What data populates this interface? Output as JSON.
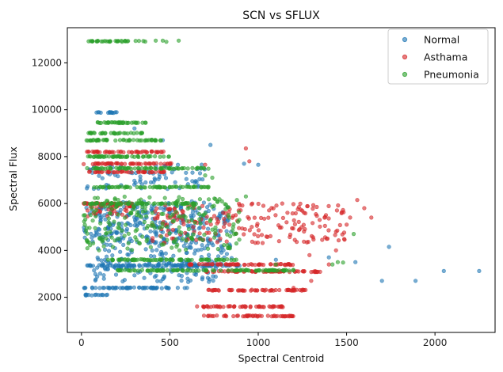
{
  "chart_data": {
    "type": "scatter",
    "title": "SCN vs SFLUX",
    "xlabel": "Spectral Centroid",
    "ylabel": "Spectral Flux",
    "xlim": [
      -80,
      2340
    ],
    "ylim": [
      500,
      13500
    ],
    "xticks": [
      0,
      500,
      1000,
      1500,
      2000
    ],
    "yticks": [
      2000,
      4000,
      6000,
      8000,
      10000,
      12000
    ],
    "grid": false,
    "legend_position": "top-right",
    "series": [
      {
        "name": "Normal",
        "color": "#1f77b4",
        "clusters": [
          {
            "x": [
              70,
              210
            ],
            "y": [
              9880,
              9880
            ]
          },
          {
            "x": [
              10,
              600
            ],
            "y": [
              2400,
              2400
            ]
          },
          {
            "x": [
              10,
              150
            ],
            "y": [
              2100,
              2100
            ]
          },
          {
            "x": [
              10,
              900
            ],
            "y": [
              3350,
              3350
            ]
          },
          {
            "x": [
              10,
              700
            ],
            "y": [
              4300,
              6100
            ]
          },
          {
            "x": [
              70,
              800
            ],
            "y": [
              2650,
              3700
            ]
          },
          {
            "x": [
              20,
              700
            ],
            "y": [
              6600,
              7700
            ]
          },
          {
            "x": [
              80,
              850
            ],
            "y": [
              3200,
              6000
            ]
          }
        ],
        "points": [
          [
            1740,
            4150
          ],
          [
            1700,
            2700
          ],
          [
            1890,
            2700
          ],
          [
            2050,
            3120
          ],
          [
            2250,
            3120
          ],
          [
            1550,
            3500
          ],
          [
            1000,
            7650
          ],
          [
            730,
            8500
          ],
          [
            460,
            8700
          ],
          [
            300,
            9200
          ],
          [
            920,
            7700
          ],
          [
            1100,
            3600
          ],
          [
            1400,
            3700
          ]
        ]
      },
      {
        "name": "Asthama",
        "color": "#d62728",
        "clusters": [
          {
            "x": [
              10,
              510
            ],
            "y": [
              7700,
              7700
            ]
          },
          {
            "x": [
              10,
              480
            ],
            "y": [
              8200,
              8200
            ]
          },
          {
            "x": [
              30,
              480
            ],
            "y": [
              7350,
              7350
            ]
          },
          {
            "x": [
              10,
              300
            ],
            "y": [
              6000,
              6000
            ]
          },
          {
            "x": [
              30,
              300
            ],
            "y": [
              5400,
              6000
            ]
          },
          {
            "x": [
              400,
              1500
            ],
            "y": [
              4300,
              6000
            ]
          },
          {
            "x": [
              650,
              1150
            ],
            "y": [
              1600,
              1600
            ]
          },
          {
            "x": [
              680,
              1200
            ],
            "y": [
              1200,
              1200
            ]
          },
          {
            "x": [
              700,
              1280
            ],
            "y": [
              2300,
              2300
            ]
          },
          {
            "x": [
              600,
              1200
            ],
            "y": [
              3400,
              3400
            ]
          },
          {
            "x": [
              700,
              1350
            ],
            "y": [
              3100,
              3100
            ]
          }
        ],
        "points": [
          [
            1600,
            5800
          ],
          [
            1560,
            6150
          ],
          [
            1640,
            5400
          ],
          [
            1500,
            5100
          ],
          [
            1520,
            5400
          ],
          [
            1440,
            4800
          ],
          [
            1440,
            4000
          ],
          [
            1400,
            3400
          ],
          [
            1290,
            3800
          ],
          [
            930,
            8350
          ],
          [
            950,
            7800
          ],
          [
            700,
            7650
          ],
          [
            1200,
            2400
          ],
          [
            1300,
            2700
          ]
        ]
      },
      {
        "name": "Pneumonia",
        "color": "#2ca02c",
        "clusters": [
          {
            "x": [
              30,
              370
            ],
            "y": [
              12920,
              12920
            ]
          },
          {
            "x": [
              40,
              370
            ],
            "y": [
              9450,
              9450
            ]
          },
          {
            "x": [
              40,
              360
            ],
            "y": [
              9000,
              9000
            ]
          },
          {
            "x": [
              10,
              460
            ],
            "y": [
              8700,
              8700
            ]
          },
          {
            "x": [
              20,
              520
            ],
            "y": [
              8000,
              8000
            ]
          },
          {
            "x": [
              30,
              720
            ],
            "y": [
              7500,
              7500
            ]
          },
          {
            "x": [
              70,
              720
            ],
            "y": [
              6700,
              6700
            ]
          },
          {
            "x": [
              10,
              650
            ],
            "y": [
              6000,
              6000
            ]
          },
          {
            "x": [
              10,
              900
            ],
            "y": [
              4000,
              6300
            ]
          },
          {
            "x": [
              200,
              1200
            ],
            "y": [
              3150,
              3150
            ]
          },
          {
            "x": [
              150,
              900
            ],
            "y": [
              3600,
              3600
            ]
          }
        ],
        "points": [
          [
            420,
            12950
          ],
          [
            460,
            12950
          ],
          [
            480,
            12900
          ],
          [
            550,
            12950
          ],
          [
            1540,
            4700
          ],
          [
            1450,
            3500
          ],
          [
            1420,
            3400
          ],
          [
            1480,
            3480
          ],
          [
            1100,
            3400
          ],
          [
            930,
            6300
          ],
          [
            700,
            7200
          ],
          [
            740,
            7100
          ]
        ]
      }
    ]
  }
}
